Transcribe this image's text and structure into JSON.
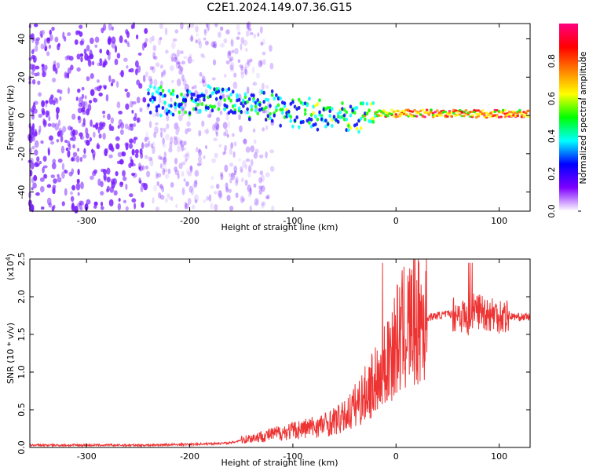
{
  "title": "C2E1.2024.149.07.36.G15",
  "colors": {
    "snr_line": "#ee3333",
    "spectrogram_ridge": "#33ee66",
    "spectrogram_noise": "#7a1fff",
    "spectrogram_strong": "#ff2a2a"
  },
  "chart_data": [
    {
      "type": "heatmap",
      "name": "spectrogram",
      "xlabel": "Height of straight line (km)",
      "ylabel": "Frequency (Hz)",
      "xlim": [
        -355,
        130
      ],
      "ylim": [
        -50,
        48
      ],
      "x_ticks": [
        -300,
        -200,
        -100,
        0,
        100
      ],
      "x_tick_labels": [
        "-300",
        "-200",
        "-100",
        "0",
        "100"
      ],
      "y_ticks": [
        -40,
        -20,
        0,
        20,
        40
      ],
      "y_tick_labels": [
        "-40",
        "-20",
        "0",
        "20",
        "40"
      ],
      "colorbar": {
        "label": "Normalized spectral amplitude",
        "range": [
          0,
          1
        ],
        "ticks": [
          0.0,
          0.2,
          0.4,
          0.6,
          0.8
        ],
        "tick_labels": [
          "0.0",
          "0.2",
          "0.4",
          "0.6",
          "0.8"
        ],
        "colormap": [
          "#ffffff",
          "#7f00ff",
          "#0000ff",
          "#00ffff",
          "#00ff00",
          "#ffff00",
          "#ff8000",
          "#ff0000",
          "#ff0080"
        ]
      },
      "ridge": [
        {
          "x": -240,
          "y": 9,
          "amp": 0.4
        },
        {
          "x": -220,
          "y": 6,
          "amp": 0.5
        },
        {
          "x": -200,
          "y": 8,
          "amp": 0.45
        },
        {
          "x": -180,
          "y": 9,
          "amp": 0.5
        },
        {
          "x": -160,
          "y": 8,
          "amp": 0.5
        },
        {
          "x": -140,
          "y": 6,
          "amp": 0.5
        },
        {
          "x": -120,
          "y": 4,
          "amp": 0.5
        },
        {
          "x": -100,
          "y": 2,
          "amp": 0.5
        },
        {
          "x": -80,
          "y": 1,
          "amp": 0.55
        },
        {
          "x": -60,
          "y": -1,
          "amp": 0.55
        },
        {
          "x": -40,
          "y": -2,
          "amp": 0.55
        },
        {
          "x": -20,
          "y": 1,
          "amp": 0.7
        },
        {
          "x": 0,
          "y": 1,
          "amp": 0.85
        },
        {
          "x": 20,
          "y": 1,
          "amp": 0.9
        },
        {
          "x": 60,
          "y": 1,
          "amp": 0.9
        },
        {
          "x": 100,
          "y": 1,
          "amp": 0.9
        },
        {
          "x": 130,
          "y": 1,
          "amp": 0.9
        }
      ],
      "noise_region_x": [
        -355,
        -150
      ]
    },
    {
      "type": "line",
      "name": "snr",
      "xlabel": "Height of straight line (km)",
      "ylabel": "SNR (10 * v/v)",
      "y_scale_label": "(x10",
      "y_scale_exponent": "4",
      "xlim": [
        -355,
        130
      ],
      "ylim": [
        0,
        2.5
      ],
      "x_ticks": [
        -300,
        -200,
        -100,
        0,
        100
      ],
      "x_tick_labels": [
        "-300",
        "-200",
        "-100",
        "0",
        "100"
      ],
      "y_ticks": [
        0.0,
        0.5,
        1.0,
        1.5,
        2.0,
        2.5
      ],
      "y_tick_labels": [
        "0.0",
        "0.5",
        "1.0",
        "1.5",
        "2.0",
        "2.5"
      ],
      "series": [
        {
          "x": [
            -355,
            -300,
            -250,
            -200,
            -160,
            -150,
            -130,
            -110,
            -90,
            -70,
            -50,
            -40,
            -30,
            -20,
            -15,
            -10,
            0,
            10,
            20,
            30,
            40,
            50,
            60,
            65,
            70,
            75,
            80,
            90,
            100,
            110,
            120,
            130
          ],
          "y": [
            0.03,
            0.03,
            0.03,
            0.04,
            0.06,
            0.1,
            0.15,
            0.2,
            0.25,
            0.3,
            0.4,
            0.55,
            0.7,
            0.9,
            1.0,
            1.15,
            1.4,
            1.6,
            1.7,
            1.72,
            1.75,
            1.77,
            1.78,
            1.75,
            1.72,
            1.8,
            1.82,
            1.78,
            1.76,
            1.74,
            1.73,
            1.73
          ]
        }
      ]
    }
  ]
}
